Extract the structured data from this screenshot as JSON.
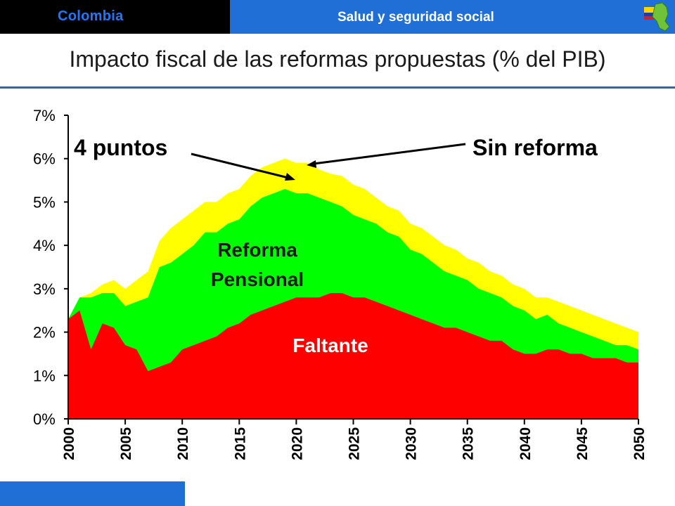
{
  "header": {
    "country": "Colombia",
    "section": "Salud y seguridad social"
  },
  "title": "Impacto fiscal de las reformas propuestas (% del PIB)",
  "colors": {
    "header_dark": "#000000",
    "header_blue": "#1F6FD6",
    "faltante": "#FF0000",
    "reforma": "#00FF00",
    "sin_reforma": "#FFFF00"
  },
  "chart_data": {
    "type": "area",
    "stacked": false,
    "x": [
      2000,
      2001,
      2002,
      2003,
      2004,
      2005,
      2006,
      2007,
      2008,
      2009,
      2010,
      2011,
      2012,
      2013,
      2014,
      2015,
      2016,
      2017,
      2018,
      2019,
      2020,
      2021,
      2022,
      2023,
      2024,
      2025,
      2026,
      2027,
      2028,
      2029,
      2030,
      2031,
      2032,
      2033,
      2034,
      2035,
      2036,
      2037,
      2038,
      2039,
      2040,
      2041,
      2042,
      2043,
      2044,
      2045,
      2046,
      2047,
      2048,
      2049,
      2050
    ],
    "series": [
      {
        "name": "Sin reforma",
        "color": "#FFFF00",
        "values": [
          2.3,
          2.8,
          2.9,
          3.1,
          3.2,
          3.0,
          3.2,
          3.4,
          4.1,
          4.4,
          4.6,
          4.8,
          5.0,
          5.0,
          5.2,
          5.3,
          5.6,
          5.8,
          5.9,
          6.0,
          5.9,
          5.9,
          5.75,
          5.65,
          5.6,
          5.4,
          5.3,
          5.1,
          4.9,
          4.8,
          4.5,
          4.4,
          4.2,
          4.0,
          3.9,
          3.7,
          3.6,
          3.4,
          3.3,
          3.1,
          3.0,
          2.8,
          2.8,
          2.7,
          2.6,
          2.5,
          2.4,
          2.3,
          2.2,
          2.1,
          2.0
        ]
      },
      {
        "name": "Reforma Pensional",
        "color": "#00FF00",
        "values": [
          2.3,
          2.8,
          2.8,
          2.9,
          2.9,
          2.6,
          2.7,
          2.8,
          3.5,
          3.6,
          3.8,
          4.0,
          4.3,
          4.3,
          4.5,
          4.6,
          4.9,
          5.1,
          5.2,
          5.3,
          5.2,
          5.2,
          5.1,
          5.0,
          4.9,
          4.7,
          4.6,
          4.5,
          4.3,
          4.2,
          3.9,
          3.8,
          3.6,
          3.4,
          3.3,
          3.2,
          3.0,
          2.9,
          2.8,
          2.6,
          2.5,
          2.3,
          2.4,
          2.2,
          2.1,
          2.0,
          1.9,
          1.8,
          1.7,
          1.7,
          1.6
        ]
      },
      {
        "name": "Faltante",
        "color": "#FF0000",
        "values": [
          2.3,
          2.5,
          1.6,
          2.2,
          2.1,
          1.7,
          1.6,
          1.1,
          1.2,
          1.3,
          1.6,
          1.7,
          1.8,
          1.9,
          2.1,
          2.2,
          2.4,
          2.5,
          2.6,
          2.7,
          2.8,
          2.8,
          2.8,
          2.9,
          2.9,
          2.8,
          2.8,
          2.7,
          2.6,
          2.5,
          2.4,
          2.3,
          2.2,
          2.1,
          2.1,
          2.0,
          1.9,
          1.8,
          1.8,
          1.6,
          1.5,
          1.5,
          1.6,
          1.6,
          1.5,
          1.5,
          1.4,
          1.4,
          1.4,
          1.3,
          1.3
        ]
      }
    ],
    "ylim": [
      0,
      7
    ],
    "yticks": [
      "0%",
      "1%",
      "2%",
      "3%",
      "4%",
      "5%",
      "6%",
      "7%"
    ],
    "xticks": [
      "2000",
      "2005",
      "2010",
      "2015",
      "2020",
      "2025",
      "2030",
      "2035",
      "2040",
      "2045",
      "2050"
    ],
    "grid": false,
    "annotations": {
      "puntos": "4 puntos",
      "sin_reforma": "Sin reforma",
      "reforma_line1": "Reforma",
      "reforma_line2": "Pensional",
      "faltante": "Faltante"
    }
  }
}
